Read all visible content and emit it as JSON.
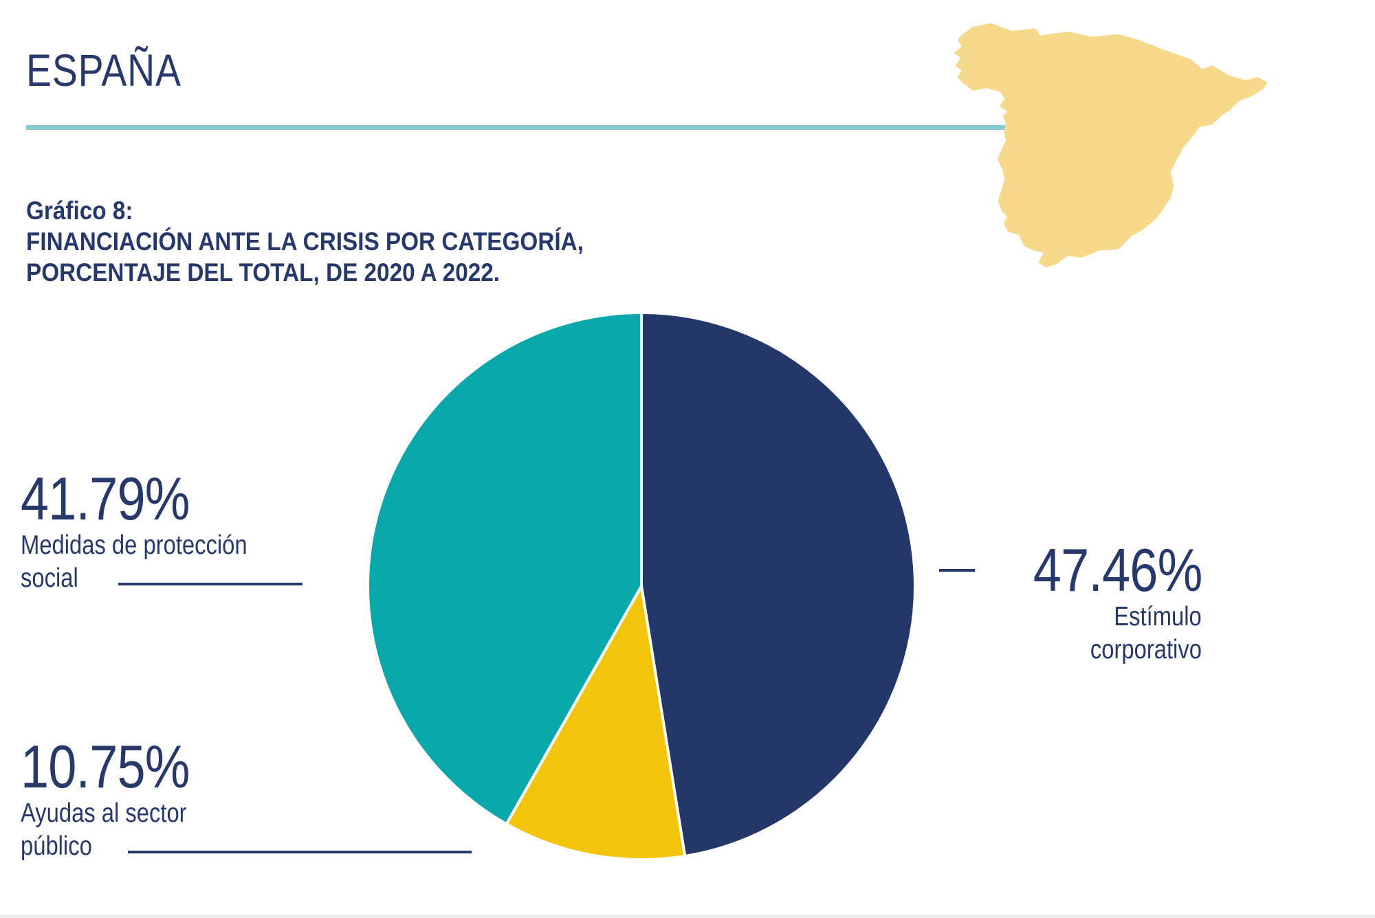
{
  "header": {
    "title": "ESPAÑA"
  },
  "caption": {
    "label": "Gráfico 8:",
    "line1": "FINANCIACIÓN ANTE LA CRISIS POR CATEGORÍA,",
    "line2": "PORCENTAJE DEL TOTAL, DE 2020 A 2022."
  },
  "colors": {
    "navy": "#27386b",
    "slice_navy": "#243769",
    "slice_teal": "#0aa7ab",
    "slice_yellow": "#f2c40c",
    "underline": "#85ccd2",
    "map_fill": "#f7d98c",
    "leader": "#27386b",
    "bottom_strip": "#efefef"
  },
  "chart_data": {
    "type": "pie",
    "title": "Financiación ante la crisis por categoría, porcentaje del total, de 2020 a 2022 (España)",
    "start_angle_deg": -90,
    "direction": "clockwise",
    "total": 100,
    "legend_position": "callouts",
    "slices": [
      {
        "id": "corporate",
        "label": "Estímulo corporativo",
        "label_lines": [
          "Estímulo",
          "corporativo"
        ],
        "value": 47.46,
        "display": "47.46%",
        "color": "#243769"
      },
      {
        "id": "public",
        "label": "Ayudas al sector público",
        "label_lines": [
          "Ayudas al sector",
          "público"
        ],
        "value": 10.75,
        "display": "10.75%",
        "color": "#f2c40c"
      },
      {
        "id": "social",
        "label": "Medidas de protección social",
        "label_lines": [
          "Medidas de protección",
          "social"
        ],
        "value": 41.79,
        "display": "41.79%",
        "color": "#0aa7ab"
      }
    ]
  }
}
